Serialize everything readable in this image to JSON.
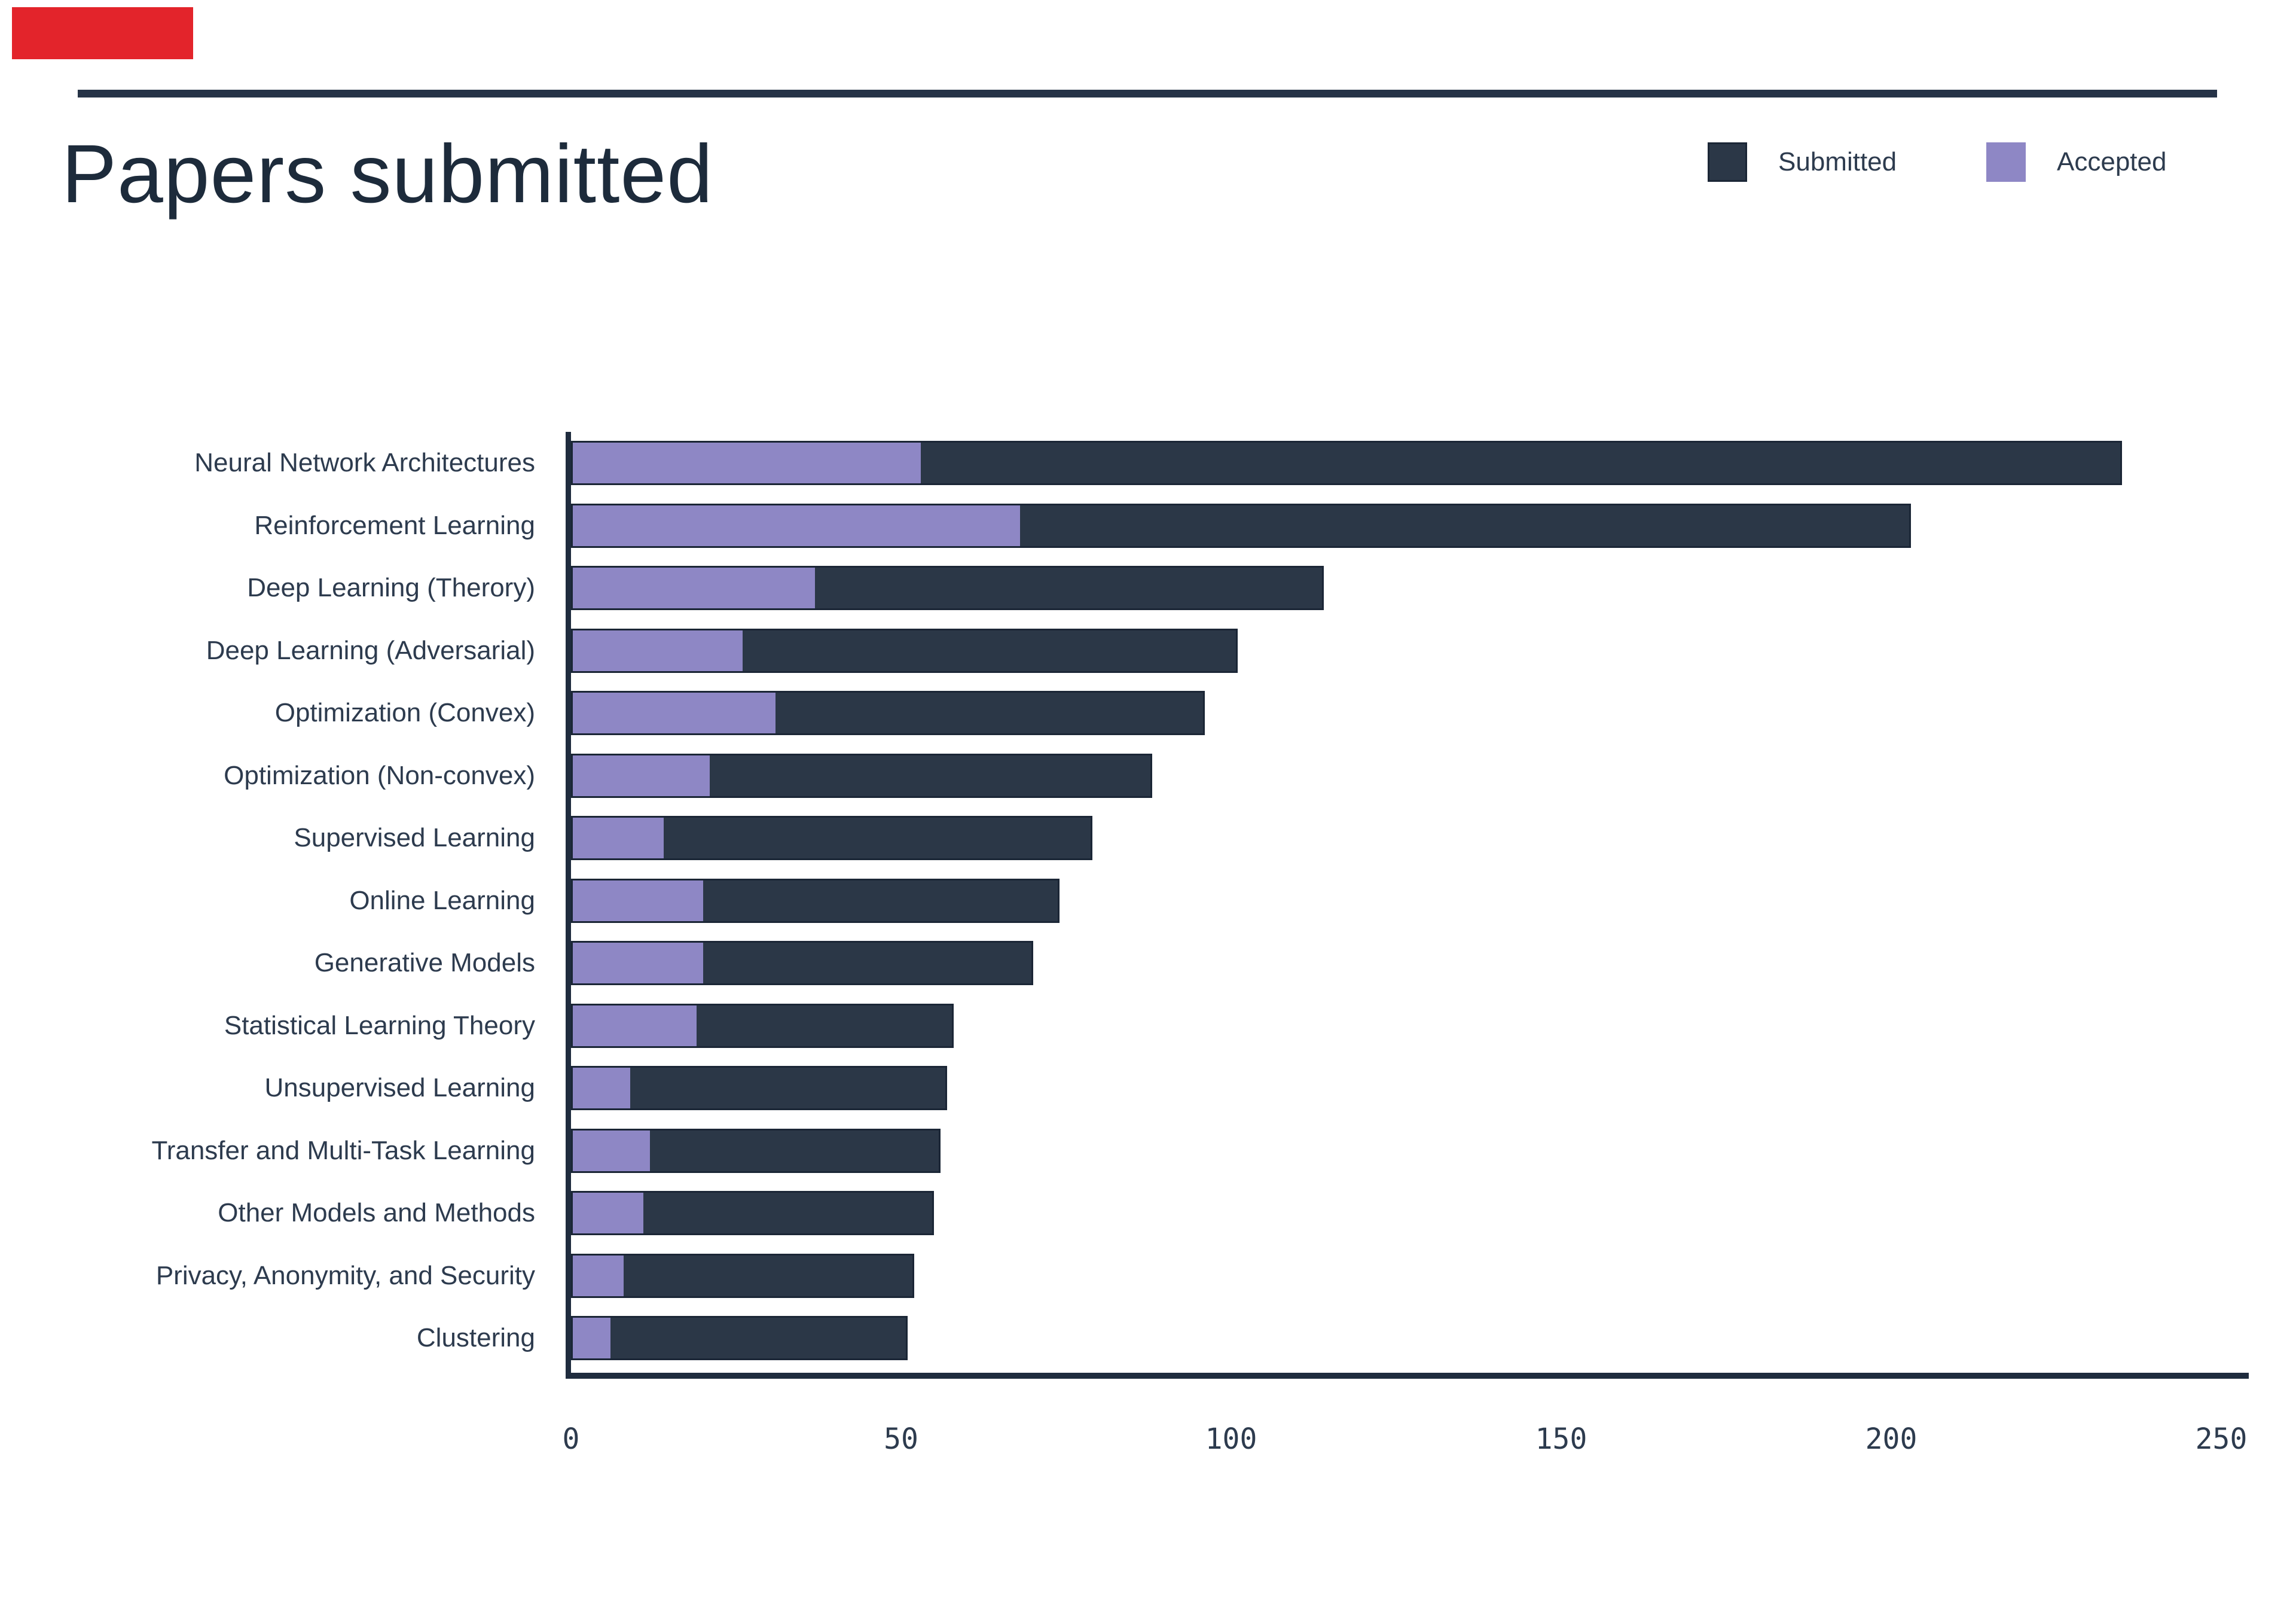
{
  "annotation": {
    "marker_color": "#e3242b"
  },
  "header": {
    "title": "Papers submitted"
  },
  "legend": [
    {
      "label": "Submitted",
      "color": "#2b3747"
    },
    {
      "label": "Accepted",
      "color": "#8e87c5"
    }
  ],
  "colors": {
    "bar_submitted": "#2b3747",
    "bar_accepted": "#8e87c5",
    "bar_border": "#1b2636",
    "axis": "#1f2c3e",
    "text": "#2d3b4e",
    "title_text": "#1d2b3b",
    "top_rule": "#263347",
    "background": "#ffffff"
  },
  "chart_data": {
    "type": "bar",
    "orientation": "horizontal",
    "title": "Papers submitted",
    "legend_position": "top-right",
    "grid": false,
    "xlim": [
      0,
      250
    ],
    "x_ticks": [
      "0",
      "50",
      "100",
      "150",
      "200",
      "250"
    ],
    "x_tick_values": [
      0,
      50,
      100,
      150,
      200,
      250
    ],
    "categories": [
      "Neural Network Architectures",
      "Reinforcement Learning",
      "Deep Learning (Therory)",
      "Deep Learning (Adversarial)",
      "Optimization (Convex)",
      "Optimization (Non-convex)",
      "Supervised Learning",
      "Online Learning",
      "Generative Models",
      "Statistical Learning Theory",
      "Unsupervised Learning",
      "Transfer and Multi-Task Learning",
      "Other Models and Methods",
      "Privacy, Anonymity, and Security",
      "Clustering"
    ],
    "series": [
      {
        "name": "Submitted",
        "note": "total bar length",
        "values": [
          235,
          203,
          114,
          101,
          96,
          88,
          79,
          74,
          70,
          58,
          57,
          56,
          55,
          52,
          51
        ]
      },
      {
        "name": "Accepted",
        "note": "purple segment overlaid from zero",
        "values": [
          53,
          68,
          37,
          26,
          31,
          21,
          14,
          20,
          20,
          19,
          9,
          12,
          11,
          8,
          6
        ]
      }
    ]
  }
}
